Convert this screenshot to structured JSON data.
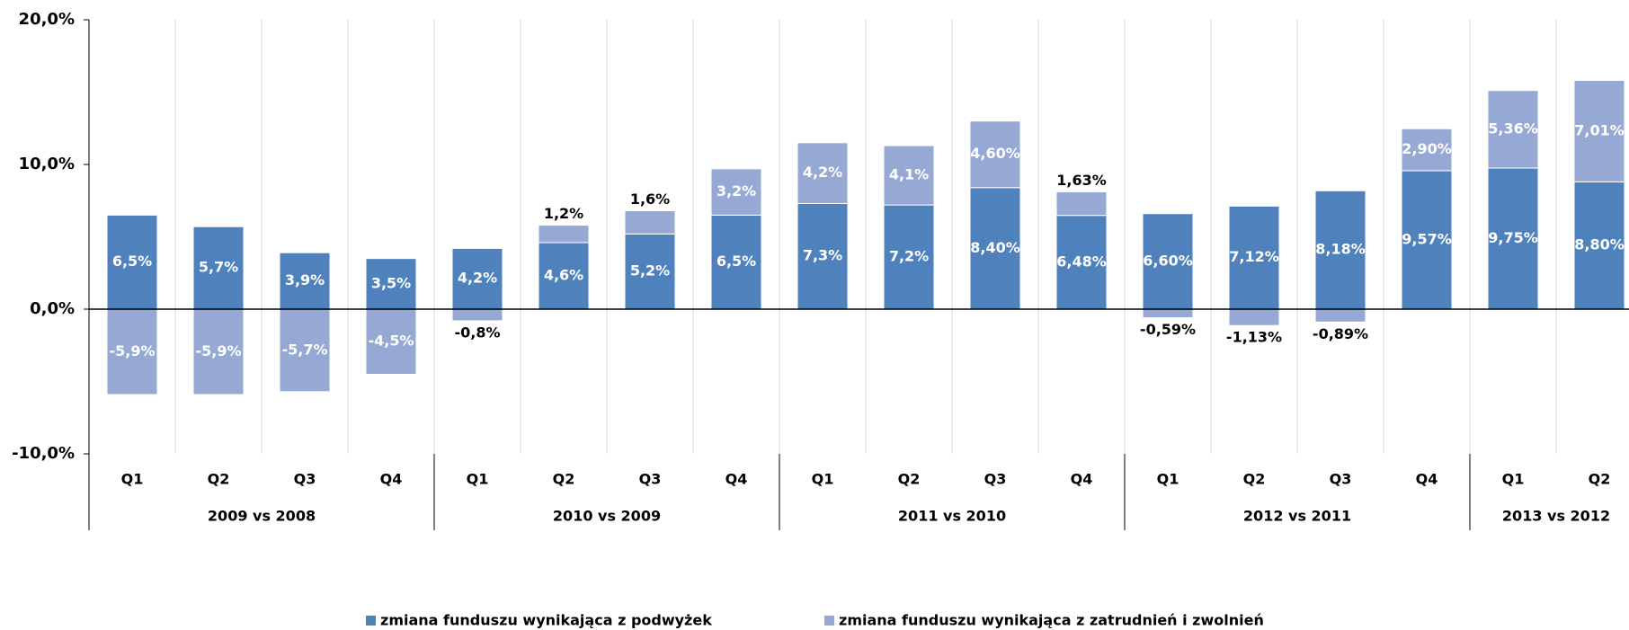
{
  "chart_data": {
    "type": "bar",
    "stacked": true,
    "groups": [
      {
        "name": "2009 vs 2008",
        "categories": [
          "Q1",
          "Q2",
          "Q3",
          "Q4"
        ]
      },
      {
        "name": "2010 vs 2009",
        "categories": [
          "Q1",
          "Q2",
          "Q3",
          "Q4"
        ]
      },
      {
        "name": "2011 vs 2010",
        "categories": [
          "Q1",
          "Q2",
          "Q3",
          "Q4"
        ]
      },
      {
        "name": "2012 vs 2011",
        "categories": [
          "Q1",
          "Q2",
          "Q3",
          "Q4"
        ]
      },
      {
        "name": "2013 vs 2012",
        "categories": [
          "Q1",
          "Q2"
        ]
      }
    ],
    "series": [
      {
        "name": "zmiana funduszu wynikająca z podwyżek",
        "color": "#4f81bd",
        "values": [
          6.5,
          5.7,
          3.9,
          3.5,
          4.2,
          4.6,
          5.2,
          6.5,
          7.3,
          7.2,
          8.4,
          6.48,
          6.6,
          7.12,
          8.18,
          9.57,
          9.75,
          8.8
        ],
        "value_labels": [
          "6,5%",
          "5,7%",
          "3,9%",
          "3,5%",
          "4,2%",
          "4,6%",
          "5,2%",
          "6,5%",
          "7,3%",
          "7,2%",
          "8,40%",
          "6,48%",
          "6,60%",
          "7,12%",
          "8,18%",
          "9,57%",
          "9,75%",
          "8,80%"
        ]
      },
      {
        "name": "zmiana funduszu wynikająca z zatrudnień i zwolnień",
        "color": "#95a9d4",
        "values": [
          -5.9,
          -5.9,
          -5.7,
          -4.5,
          -0.8,
          1.2,
          1.6,
          3.2,
          4.2,
          4.1,
          4.6,
          1.63,
          -0.59,
          -1.13,
          -0.89,
          2.9,
          5.36,
          7.01
        ],
        "value_labels": [
          "-5,9%",
          "-5,9%",
          "-5,7%",
          "-4,5%",
          "-0,8%",
          "1,2%",
          "1,6%",
          "3,2%",
          "4,2%",
          "4,1%",
          "4,60%",
          "1,63%",
          "-0,59%",
          "-1,13%",
          "-0,89%",
          "2,90%",
          "5,36%",
          "7,01%"
        ]
      }
    ],
    "ylim": [
      -10,
      20
    ],
    "yticks": [
      {
        "value": -10,
        "label": "-10,0%"
      },
      {
        "value": 0,
        "label": "0,0%"
      },
      {
        "value": 10,
        "label": "10,0%"
      },
      {
        "value": 20,
        "label": "20,0%"
      }
    ],
    "legend": "bottom"
  }
}
